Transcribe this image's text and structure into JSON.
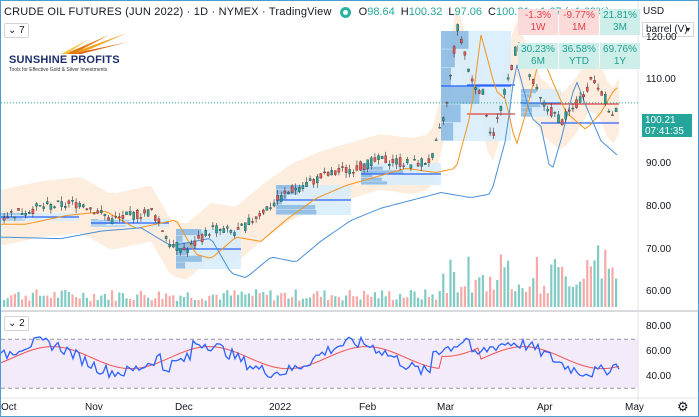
{
  "header": {
    "title": "CRUDE OIL FUTURES (JUN 2022) · 1D · NYMEX · TradingView",
    "ohlc": [
      {
        "label": "O",
        "value": "98.64"
      },
      {
        "label": "H",
        "value": "100.32"
      },
      {
        "label": "L",
        "value": "97.06"
      },
      {
        "label": "C",
        "value": "100.21"
      }
    ],
    "change": "+1.67 (+1.69%)"
  },
  "indicator_badges": {
    "volume_profile": "7",
    "rsi": "2"
  },
  "logo": {
    "brand": "SUNSHINE PROFITS",
    "tagline": "Tools for Effective Gold & Silver Investments"
  },
  "performance": [
    {
      "value": "-1.3%",
      "period": "1W",
      "sign": "neg"
    },
    {
      "value": "-9.77%",
      "period": "1M",
      "sign": "neg"
    },
    {
      "value": "21.81%",
      "period": "3M",
      "sign": "pos"
    },
    {
      "value": "30.23%",
      "period": "6M",
      "sign": "pos"
    },
    {
      "value": "36.58%",
      "period": "YTD",
      "sign": "pos"
    },
    {
      "value": "69.76%",
      "period": "1Y",
      "sign": "pos"
    }
  ],
  "price_axis": {
    "currency": "USD",
    "unit": "barrel (V)",
    "ticks": [
      "120.00",
      "110.00",
      "90.00",
      "80.00",
      "70.00",
      "60.00"
    ]
  },
  "last_price": {
    "price": "100.21",
    "countdown": "07:41:35"
  },
  "rsi_axis": {
    "ticks": [
      "80.00",
      "60.00",
      "40.00"
    ]
  },
  "time_axis": [
    "Oct",
    "Nov",
    "Dec",
    "2022",
    "Feb",
    "Mar",
    "Apr",
    "May"
  ],
  "colors": {
    "up": "#26a69a",
    "down": "#ef5350",
    "ma_short": "#f7931a",
    "ma_long": "#4a90d9",
    "rsi": "#2962ff",
    "rsi_ma": "#ef5350",
    "rsi_band": "#e9d8f5",
    "border": "#4a9fd0"
  }
}
